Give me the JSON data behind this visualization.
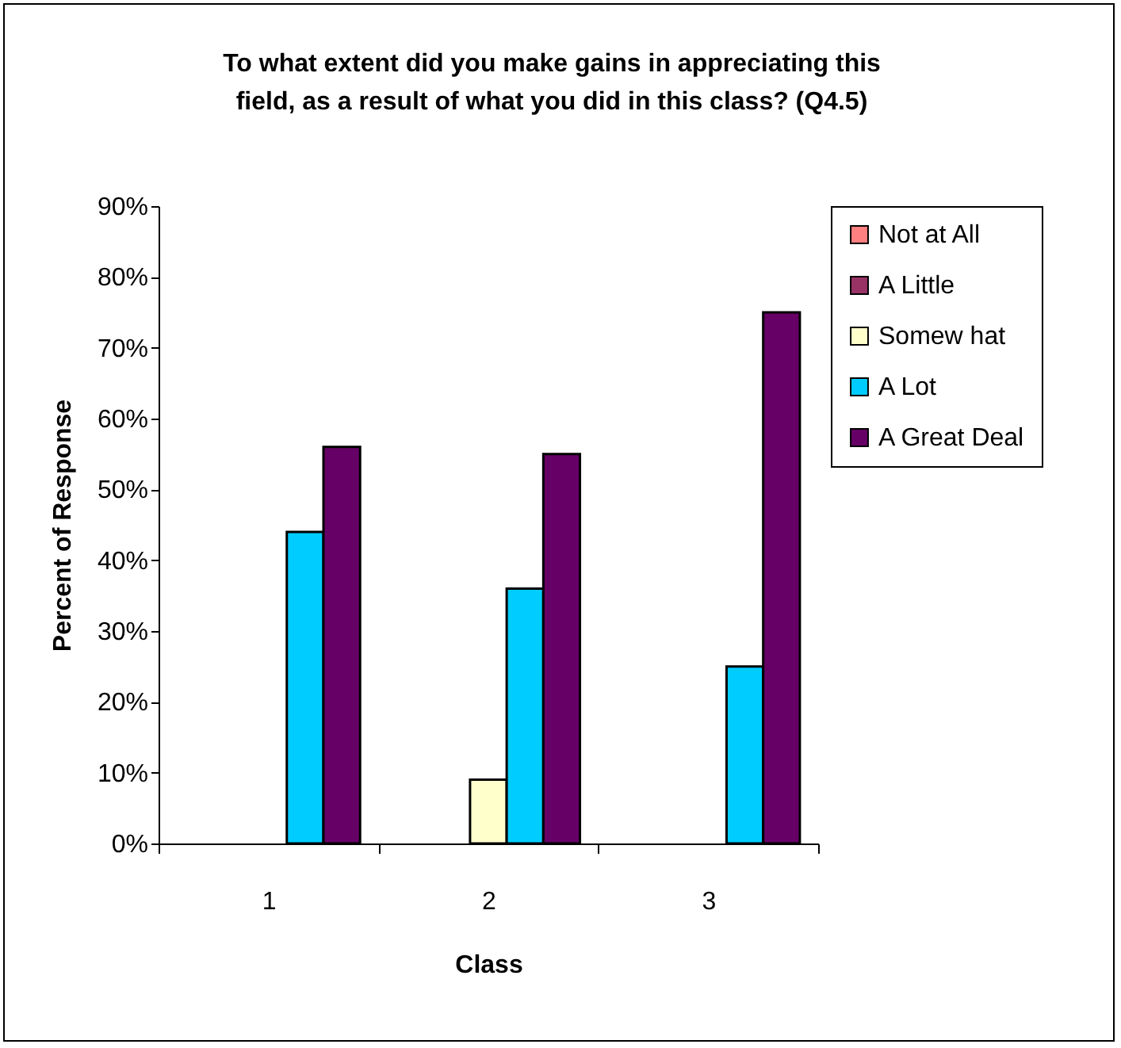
{
  "chart_data": {
    "type": "bar",
    "title": "To what extent did you make gains in appreciating this field, as a result of what you did in this class? (Q4.5)",
    "xlabel": "Class",
    "ylabel": "Percent of Response",
    "categories": [
      "1",
      "2",
      "3"
    ],
    "series": [
      {
        "name": "Not at All",
        "color": "#ff8080",
        "values": [
          null,
          null,
          null
        ]
      },
      {
        "name": "A Little",
        "color": "#993366",
        "values": [
          null,
          null,
          null
        ]
      },
      {
        "name": "Somew hat",
        "color": "#ffffcc",
        "values": [
          null,
          9,
          null
        ]
      },
      {
        "name": "A Lot",
        "color": "#00ccff",
        "values": [
          44,
          36,
          25
        ]
      },
      {
        "name": "A Great Deal",
        "color": "#660066",
        "values": [
          56,
          55,
          75
        ]
      }
    ],
    "ylim": [
      0,
      90
    ],
    "yticks": [
      {
        "value": 0,
        "label": "0%"
      },
      {
        "value": 10,
        "label": "10%"
      },
      {
        "value": 20,
        "label": "20%"
      },
      {
        "value": 30,
        "label": "30%"
      },
      {
        "value": 40,
        "label": "40%"
      },
      {
        "value": 50,
        "label": "50%"
      },
      {
        "value": 60,
        "label": "60%"
      },
      {
        "value": 70,
        "label": "70%"
      },
      {
        "value": 80,
        "label": "80%"
      },
      {
        "value": 90,
        "label": "90%"
      }
    ],
    "grid": false,
    "legend": "right"
  }
}
